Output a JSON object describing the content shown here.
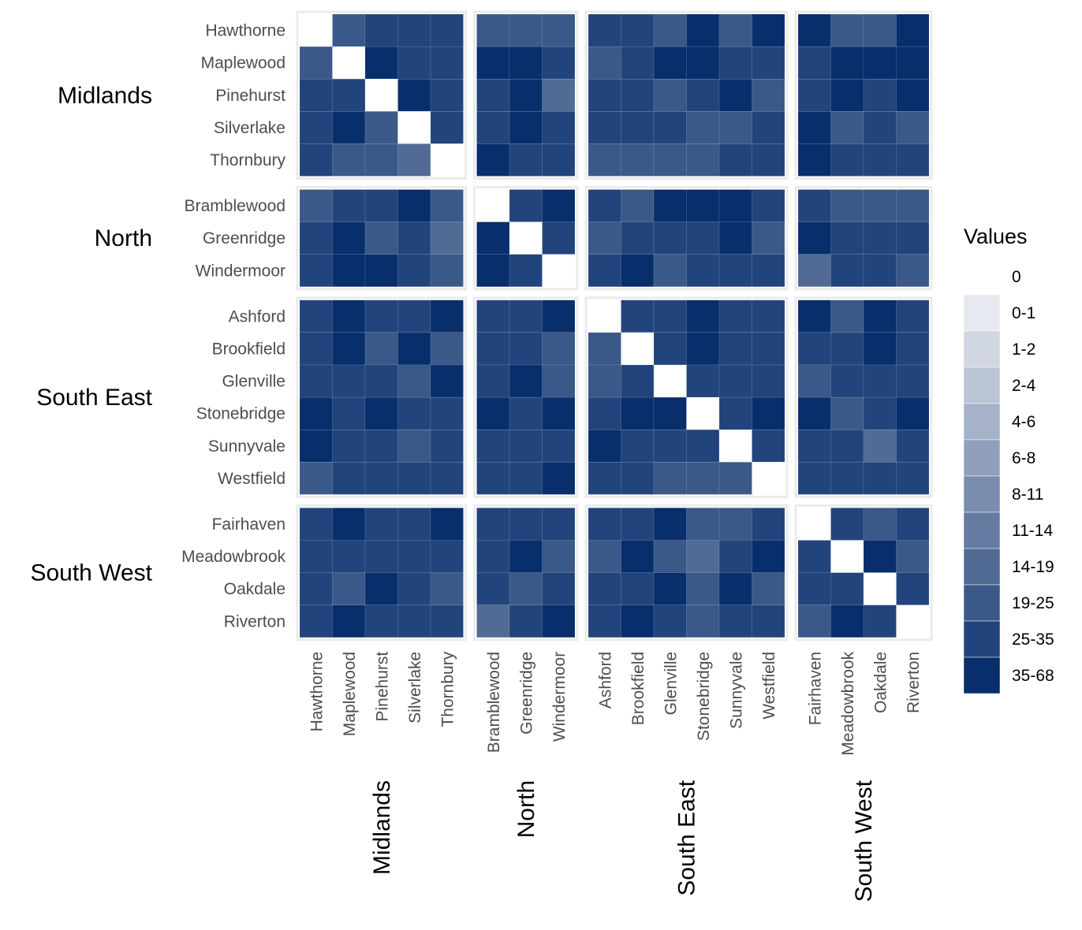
{
  "chart_data": {
    "type": "heatmap",
    "title": "",
    "xlabel": "",
    "ylabel": "",
    "groups": [
      {
        "name": "Midlands",
        "members": [
          "Hawthorne",
          "Maplewood",
          "Pinehurst",
          "Silverlake",
          "Thornbury"
        ]
      },
      {
        "name": "North",
        "members": [
          "Bramblewood",
          "Greenridge",
          "Windermoor"
        ]
      },
      {
        "name": "South East",
        "members": [
          "Ashford",
          "Brookfield",
          "Glenville",
          "Stonebridge",
          "Sunnyvale",
          "Westfield"
        ]
      },
      {
        "name": "South West",
        "members": [
          "Fairhaven",
          "Meadowbrook",
          "Oakdale",
          "Riverton"
        ]
      }
    ],
    "value_note": "each cell = colour-bin index 0..11 of legend_bins (0 = '0', 11 = '35-68'); rows and columns in group order",
    "matrix": [
      [
        0,
        9,
        10,
        10,
        10,
        9,
        9,
        9,
        10,
        10,
        9,
        11,
        9,
        11,
        11,
        9,
        9,
        11
      ],
      [
        9,
        0,
        11,
        10,
        10,
        11,
        11,
        10,
        9,
        10,
        11,
        11,
        10,
        10,
        10,
        11,
        11,
        11
      ],
      [
        10,
        10,
        0,
        11,
        10,
        10,
        11,
        8,
        10,
        10,
        9,
        10,
        11,
        9,
        10,
        11,
        10,
        11
      ],
      [
        10,
        11,
        9,
        0,
        10,
        10,
        11,
        10,
        10,
        10,
        10,
        9,
        9,
        10,
        11,
        9,
        10,
        9
      ],
      [
        10,
        9,
        9,
        8,
        0,
        11,
        10,
        10,
        9,
        9,
        9,
        9,
        10,
        10,
        11,
        10,
        10,
        10
      ],
      [
        9,
        10,
        10,
        11,
        9,
        0,
        10,
        11,
        10,
        9,
        11,
        11,
        11,
        10,
        10,
        9,
        9,
        9
      ],
      [
        10,
        11,
        9,
        10,
        8,
        11,
        0,
        10,
        9,
        10,
        10,
        10,
        11,
        9,
        11,
        10,
        10,
        10
      ],
      [
        10,
        11,
        11,
        10,
        9,
        11,
        10,
        0,
        10,
        11,
        9,
        10,
        10,
        10,
        8,
        10,
        10,
        9
      ],
      [
        10,
        11,
        10,
        10,
        11,
        10,
        10,
        11,
        0,
        10,
        10,
        11,
        10,
        10,
        11,
        9,
        11,
        10
      ],
      [
        10,
        11,
        9,
        11,
        9,
        10,
        10,
        9,
        9,
        0,
        10,
        11,
        10,
        10,
        10,
        10,
        11,
        10
      ],
      [
        10,
        10,
        10,
        9,
        11,
        10,
        11,
        9,
        9,
        10,
        0,
        10,
        10,
        10,
        9,
        10,
        10,
        10
      ],
      [
        11,
        10,
        11,
        10,
        10,
        11,
        10,
        11,
        10,
        11,
        11,
        0,
        10,
        11,
        11,
        9,
        10,
        11
      ],
      [
        11,
        10,
        10,
        9,
        10,
        10,
        10,
        10,
        11,
        10,
        10,
        10,
        0,
        10,
        10,
        10,
        8,
        10
      ],
      [
        9,
        10,
        10,
        10,
        10,
        10,
        10,
        11,
        10,
        10,
        9,
        9,
        9,
        0,
        10,
        10,
        10,
        10
      ],
      [
        10,
        11,
        10,
        10,
        11,
        10,
        10,
        10,
        10,
        10,
        11,
        9,
        9,
        10,
        0,
        10,
        9,
        10
      ],
      [
        10,
        10,
        10,
        10,
        10,
        10,
        11,
        9,
        9,
        11,
        9,
        8,
        10,
        11,
        10,
        0,
        11,
        9
      ],
      [
        10,
        9,
        11,
        10,
        9,
        10,
        9,
        10,
        10,
        10,
        11,
        9,
        11,
        9,
        10,
        10,
        0,
        10
      ],
      [
        10,
        11,
        10,
        10,
        10,
        8,
        10,
        11,
        10,
        11,
        10,
        9,
        10,
        10,
        9,
        11,
        10,
        0
      ]
    ],
    "legend_title": "Values",
    "legend_bins": [
      "0",
      "0-1",
      "1-2",
      "2-4",
      "4-6",
      "6-8",
      "8-11",
      "11-14",
      "14-19",
      "19-25",
      "25-35",
      "35-68"
    ],
    "legend_colors": [
      "#ffffff",
      "#e6e9ef",
      "#d0d6e2",
      "#bac4d5",
      "#a5b2c9",
      "#909fbc",
      "#7b8dae",
      "#667ba1",
      "#516b95",
      "#3b5988",
      "#22447c",
      "#082e6c"
    ],
    "panel_border_color": "#ebebeb",
    "grid": false,
    "legend_position": "right"
  }
}
